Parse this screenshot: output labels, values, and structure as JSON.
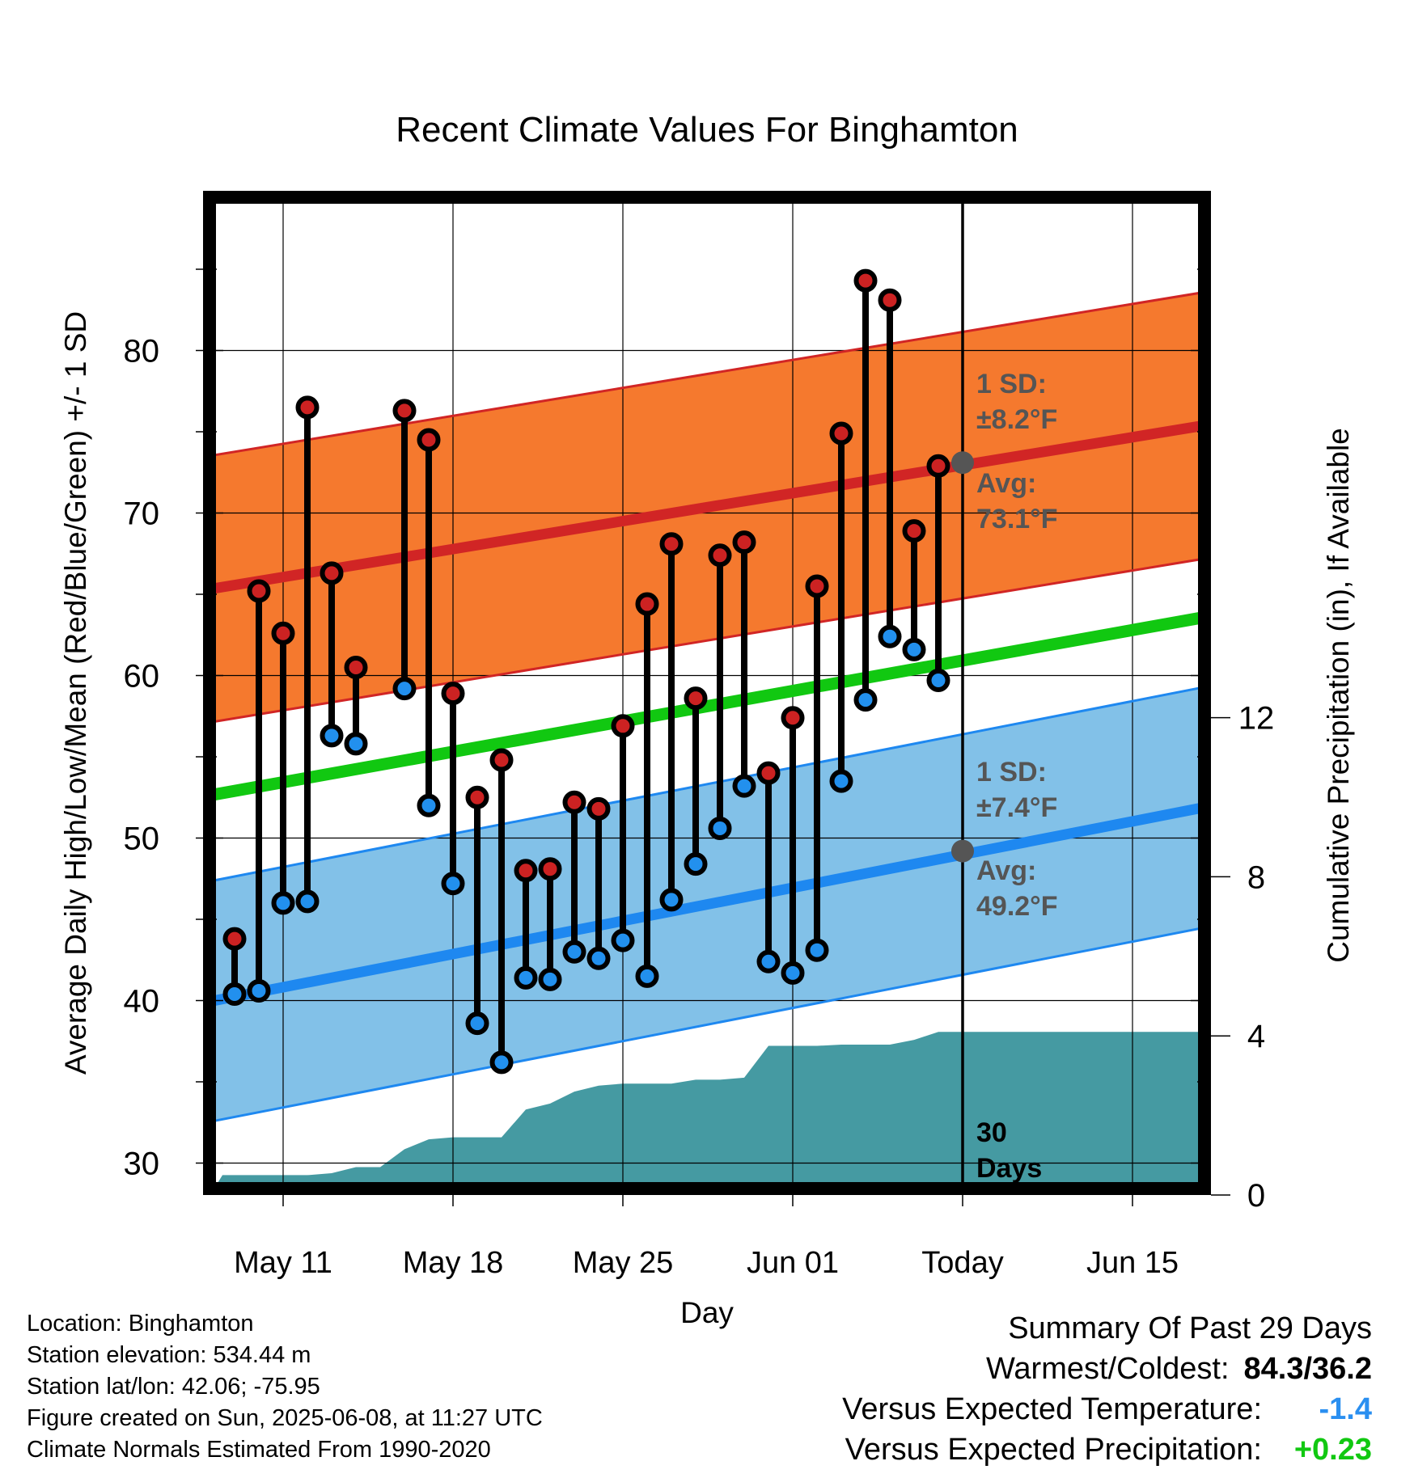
{
  "chart_data": {
    "type": "line",
    "title": "Recent Climate Values For Binghamton",
    "xlabel": "Day",
    "ylabel": "Average Daily High/Low/Mean (Red/Blue/Green) +/- 1 SD",
    "y2label": "Cumulative Precipitation (in), If Available",
    "x_range_days": [
      -31.5,
      10
    ],
    "x_unit": "days relative to today (2025-06-08)",
    "ylim": [
      28.5,
      89
    ],
    "y2lim": [
      0,
      24
    ],
    "y_ticks": [
      30,
      40,
      50,
      60,
      70,
      80
    ],
    "y2_ticks": [
      0,
      4,
      8,
      12
    ],
    "x_ticks": [
      {
        "day": -28,
        "label": "May 11"
      },
      {
        "day": -21,
        "label": "May 18"
      },
      {
        "day": -14,
        "label": "May 25"
      },
      {
        "day": -7,
        "label": "Jun 01"
      },
      {
        "day": 0,
        "label": "Today"
      },
      {
        "day": 7,
        "label": "Jun 15"
      }
    ],
    "grid": true,
    "normals": {
      "high": {
        "start": 65.2,
        "end": 75.4,
        "sd": 8.2
      },
      "low": {
        "start": 39.8,
        "end": 51.9,
        "sd": 7.4
      },
      "mean": {
        "start": 52.5,
        "end": 63.6
      }
    },
    "today_marker": {
      "day": 0,
      "high_avg": 73.1,
      "low_avg": 49.2,
      "high_sd_label": "1 SD:",
      "high_sd_value": "±8.2°F",
      "high_avg_label": "Avg:",
      "high_avg_value": "73.1°F",
      "low_sd_label": "1 SD:",
      "low_sd_value": "±7.4°F",
      "low_avg_label": "Avg:",
      "low_avg_value": "49.2°F",
      "period_line1": "30",
      "period_line2": "Days"
    },
    "daily": [
      {
        "day": -30,
        "high": 43.8,
        "low": 40.4
      },
      {
        "day": -29,
        "high": 65.2,
        "low": 40.6
      },
      {
        "day": -28,
        "high": 62.6,
        "low": 46.0
      },
      {
        "day": -27,
        "high": 76.5,
        "low": 46.1
      },
      {
        "day": -26,
        "high": 66.3,
        "low": 56.3
      },
      {
        "day": -25,
        "high": 60.5,
        "low": 55.8
      },
      {
        "day": -23,
        "high": 76.3,
        "low": 59.2
      },
      {
        "day": -22,
        "high": 74.5,
        "low": 52.0
      },
      {
        "day": -21,
        "high": 58.9,
        "low": 47.2
      },
      {
        "day": -20,
        "high": 52.5,
        "low": 38.6
      },
      {
        "day": -19,
        "high": 54.8,
        "low": 36.2
      },
      {
        "day": -18,
        "high": 48.0,
        "low": 41.4
      },
      {
        "day": -17,
        "high": 48.1,
        "low": 41.3
      },
      {
        "day": -16,
        "high": 52.2,
        "low": 43.0
      },
      {
        "day": -15,
        "high": 51.8,
        "low": 42.6
      },
      {
        "day": -14,
        "high": 56.9,
        "low": 43.7
      },
      {
        "day": -13,
        "high": 64.4,
        "low": 41.5
      },
      {
        "day": -12,
        "high": 68.1,
        "low": 46.2
      },
      {
        "day": -11,
        "high": 58.6,
        "low": 48.4
      },
      {
        "day": -10,
        "high": 67.4,
        "low": 50.6
      },
      {
        "day": -9,
        "high": 68.2,
        "low": 53.2
      },
      {
        "day": -8,
        "high": 54.0,
        "low": 42.4
      },
      {
        "day": -7,
        "high": 57.4,
        "low": 41.7
      },
      {
        "day": -6,
        "high": 65.5,
        "low": 43.1
      },
      {
        "day": -5,
        "high": 74.9,
        "low": 53.5
      },
      {
        "day": -4,
        "high": 84.3,
        "low": 58.5
      },
      {
        "day": -3,
        "high": 83.1,
        "low": 62.4
      },
      {
        "day": -2,
        "high": 68.9,
        "low": 61.6
      },
      {
        "day": -1,
        "high": 72.9,
        "low": 59.7
      }
    ],
    "precipitation": [
      {
        "day": -31.5,
        "value": 0.0
      },
      {
        "day": -31.0,
        "value": 0.0
      },
      {
        "day": -30.5,
        "value": 0.5
      },
      {
        "day": -28.0,
        "value": 0.5
      },
      {
        "day": -27.0,
        "value": 0.5
      },
      {
        "day": -26.0,
        "value": 0.55
      },
      {
        "day": -25.0,
        "value": 0.7
      },
      {
        "day": -24.0,
        "value": 0.7
      },
      {
        "day": -23.0,
        "value": 1.15
      },
      {
        "day": -22.0,
        "value": 1.4
      },
      {
        "day": -21.0,
        "value": 1.45
      },
      {
        "day": -20.0,
        "value": 1.45
      },
      {
        "day": -19.0,
        "value": 1.45
      },
      {
        "day": -18.0,
        "value": 2.15
      },
      {
        "day": -17.0,
        "value": 2.3
      },
      {
        "day": -16.0,
        "value": 2.6
      },
      {
        "day": -15.0,
        "value": 2.75
      },
      {
        "day": -14.0,
        "value": 2.8
      },
      {
        "day": -12.0,
        "value": 2.8
      },
      {
        "day": -11.0,
        "value": 2.9
      },
      {
        "day": -10.0,
        "value": 2.9
      },
      {
        "day": -9.0,
        "value": 2.95
      },
      {
        "day": -8.0,
        "value": 3.75
      },
      {
        "day": -7.0,
        "value": 3.75
      },
      {
        "day": -6.0,
        "value": 3.75
      },
      {
        "day": -5.0,
        "value": 3.78
      },
      {
        "day": -3.0,
        "value": 3.78
      },
      {
        "day": -2.0,
        "value": 3.9
      },
      {
        "day": -1.0,
        "value": 4.1
      },
      {
        "day": 0.0,
        "value": 4.1
      },
      {
        "day": 10.0,
        "value": 4.1
      }
    ],
    "colors": {
      "high_band": "#f5792e",
      "high_line": "#d12525",
      "low_band": "#82c1e8",
      "low_line": "#1e88f0",
      "mean_line": "#11c811",
      "precip_fill": "#459aa2",
      "high_marker": "#cc2222",
      "low_marker": "#2290ee",
      "annotation_text": "#555555"
    }
  },
  "station_info": [
    "Location: Binghamton",
    "Station elevation: 534.44 m",
    "Station lat/lon: 42.06; -75.95",
    "Figure created on Sun, 2025-06-08, at 11:27 UTC",
    "Climate Normals Estimated From 1990-2020"
  ],
  "summary": {
    "title": "Summary Of Past 29 Days",
    "warmest_coldest_label": "Warmest/Coldest:",
    "warmest_coldest_value": "84.3/36.2",
    "temp_label": "Versus Expected Temperature:",
    "temp_value": "-1.4",
    "temp_color": "#2a8ff0",
    "precip_label": "Versus Expected Precipitation:",
    "precip_value": "+0.23",
    "precip_color": "#11c811"
  }
}
